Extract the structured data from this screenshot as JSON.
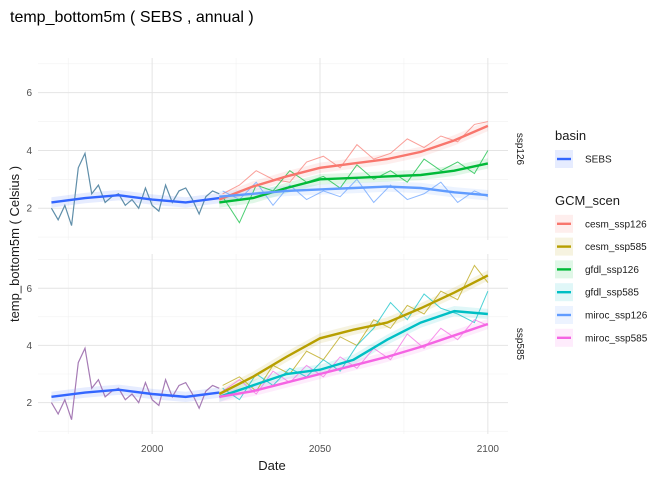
{
  "chart_data": {
    "type": "line",
    "title": "temp_bottom5m ( SEBS , annual )",
    "xlabel": "Date",
    "ylabel": "temp_bottom5m ( Celsius )",
    "xlim": [
      1966,
      2106
    ],
    "x_ticks": [
      2000,
      2050,
      2100
    ],
    "ylim": [
      0.9,
      7.2
    ],
    "y_ticks": [
      2,
      4,
      6
    ],
    "grid": true,
    "legend_position": "right",
    "legends": [
      {
        "title": "basin",
        "entries": [
          {
            "label": "SEBS",
            "color": "#3366FF"
          }
        ]
      },
      {
        "title": "GCM_scen",
        "entries": [
          {
            "label": "cesm_ssp126",
            "color": "#F8766D"
          },
          {
            "label": "cesm_ssp585",
            "color": "#B79F00"
          },
          {
            "label": "gfdl_ssp126",
            "color": "#00BA38"
          },
          {
            "label": "gfdl_ssp585",
            "color": "#00BFC4"
          },
          {
            "label": "miroc_ssp126",
            "color": "#619CFF"
          },
          {
            "label": "miroc_ssp585",
            "color": "#F564E3"
          }
        ]
      }
    ],
    "panels": [
      {
        "strip": "ssp126",
        "hindcast_color": "#5F8EA9",
        "hindcast": {
          "x": [
            1970,
            1972,
            1974,
            1976,
            1978,
            1980,
            1982,
            1984,
            1986,
            1988,
            1990,
            1992,
            1994,
            1996,
            1998,
            2000,
            2002,
            2004,
            2006,
            2008,
            2010,
            2012,
            2014,
            2016,
            2018,
            2020
          ],
          "y": [
            2.0,
            1.6,
            2.1,
            1.4,
            3.4,
            3.9,
            2.5,
            2.8,
            2.2,
            2.4,
            2.5,
            2.1,
            2.3,
            2.0,
            2.7,
            2.1,
            1.9,
            2.8,
            2.2,
            2.6,
            2.7,
            2.3,
            1.8,
            2.4,
            2.6,
            2.5
          ]
        },
        "smooth_hindcast": {
          "x": [
            1970,
            1980,
            1990,
            2000,
            2010,
            2020
          ],
          "y": [
            2.2,
            2.35,
            2.45,
            2.3,
            2.2,
            2.35
          ],
          "color": "#3366FF"
        },
        "series": [
          {
            "name": "cesm_ssp126",
            "color": "#F8766D",
            "x": [
              2021,
              2026,
              2031,
              2036,
              2041,
              2046,
              2051,
              2056,
              2061,
              2066,
              2071,
              2076,
              2081,
              2086,
              2091,
              2096,
              2100
            ],
            "y": [
              2.5,
              2.8,
              3.3,
              3.0,
              2.9,
              3.6,
              3.8,
              3.4,
              4.2,
              3.7,
              3.9,
              4.4,
              4.1,
              4.5,
              4.3,
              4.9,
              5.0
            ]
          },
          {
            "name": "gfdl_ssp126",
            "color": "#00BA38",
            "x": [
              2021,
              2026,
              2031,
              2036,
              2041,
              2046,
              2051,
              2056,
              2061,
              2066,
              2071,
              2076,
              2081,
              2086,
              2091,
              2096,
              2100
            ],
            "y": [
              2.4,
              1.5,
              2.8,
              2.6,
              3.3,
              2.9,
              3.1,
              2.7,
              3.5,
              3.0,
              3.3,
              2.9,
              3.7,
              3.3,
              3.6,
              3.2,
              4.0
            ]
          },
          {
            "name": "miroc_ssp126",
            "color": "#619CFF",
            "x": [
              2021,
              2026,
              2031,
              2036,
              2041,
              2046,
              2051,
              2056,
              2061,
              2066,
              2071,
              2076,
              2081,
              2086,
              2091,
              2096,
              2100
            ],
            "y": [
              2.6,
              2.3,
              2.9,
              2.1,
              2.8,
              2.3,
              2.6,
              2.4,
              3.0,
              2.2,
              2.8,
              2.3,
              2.5,
              2.9,
              2.2,
              2.6,
              2.4
            ]
          }
        ],
        "smooths": [
          {
            "name": "cesm_ssp126",
            "color": "#F8766D",
            "x": [
              2020,
              2030,
              2040,
              2050,
              2060,
              2070,
              2080,
              2090,
              2100
            ],
            "y": [
              2.3,
              2.75,
              3.1,
              3.4,
              3.55,
              3.7,
              3.95,
              4.35,
              4.85
            ]
          },
          {
            "name": "gfdl_ssp126",
            "color": "#00BA38",
            "x": [
              2020,
              2030,
              2040,
              2050,
              2060,
              2070,
              2080,
              2090,
              2100
            ],
            "y": [
              2.2,
              2.35,
              2.7,
              3.0,
              3.05,
              3.1,
              3.15,
              3.3,
              3.55
            ]
          },
          {
            "name": "miroc_ssp126",
            "color": "#619CFF",
            "x": [
              2020,
              2030,
              2040,
              2050,
              2060,
              2070,
              2080,
              2090,
              2100
            ],
            "y": [
              2.4,
              2.5,
              2.6,
              2.65,
              2.7,
              2.75,
              2.7,
              2.55,
              2.45
            ]
          }
        ]
      },
      {
        "strip": "ssp585",
        "hindcast_color": "#A67BB5",
        "hindcast": {
          "x": [
            1970,
            1972,
            1974,
            1976,
            1978,
            1980,
            1982,
            1984,
            1986,
            1988,
            1990,
            1992,
            1994,
            1996,
            1998,
            2000,
            2002,
            2004,
            2006,
            2008,
            2010,
            2012,
            2014,
            2016,
            2018,
            2020
          ],
          "y": [
            2.0,
            1.6,
            2.1,
            1.4,
            3.4,
            3.9,
            2.5,
            2.8,
            2.2,
            2.4,
            2.5,
            2.1,
            2.3,
            2.0,
            2.7,
            2.1,
            1.9,
            2.8,
            2.2,
            2.6,
            2.7,
            2.3,
            1.8,
            2.4,
            2.6,
            2.5
          ]
        },
        "smooth_hindcast": {
          "x": [
            1970,
            1980,
            1990,
            2000,
            2010,
            2020
          ],
          "y": [
            2.2,
            2.35,
            2.45,
            2.3,
            2.2,
            2.35
          ],
          "color": "#3366FF"
        },
        "series": [
          {
            "name": "cesm_ssp585",
            "color": "#B79F00",
            "x": [
              2021,
              2026,
              2031,
              2036,
              2041,
              2046,
              2051,
              2056,
              2061,
              2066,
              2071,
              2076,
              2081,
              2086,
              2091,
              2096,
              2100
            ],
            "y": [
              2.6,
              2.9,
              2.4,
              3.3,
              3.0,
              3.8,
              3.5,
              4.3,
              4.0,
              4.9,
              4.6,
              5.4,
              5.1,
              5.9,
              5.6,
              6.8,
              6.2
            ]
          },
          {
            "name": "gfdl_ssp585",
            "color": "#00BFC4",
            "x": [
              2021,
              2026,
              2031,
              2036,
              2041,
              2046,
              2051,
              2056,
              2061,
              2066,
              2071,
              2076,
              2081,
              2086,
              2091,
              2096,
              2100
            ],
            "y": [
              2.5,
              2.1,
              3.0,
              2.6,
              3.2,
              2.9,
              3.5,
              3.1,
              4.0,
              4.6,
              5.5,
              4.9,
              5.8,
              5.3,
              5.1,
              4.8,
              5.9
            ]
          },
          {
            "name": "miroc_ssp585",
            "color": "#F564E3",
            "x": [
              2021,
              2026,
              2031,
              2036,
              2041,
              2046,
              2051,
              2056,
              2061,
              2066,
              2071,
              2076,
              2081,
              2086,
              2091,
              2096,
              2100
            ],
            "y": [
              2.4,
              2.8,
              2.3,
              3.1,
              2.7,
              3.3,
              2.9,
              3.6,
              3.2,
              3.9,
              3.5,
              4.4,
              3.9,
              4.6,
              4.2,
              4.9,
              4.7
            ]
          }
        ],
        "smooths": [
          {
            "name": "cesm_ssp585",
            "color": "#B79F00",
            "x": [
              2020,
              2030,
              2040,
              2050,
              2060,
              2070,
              2080,
              2090,
              2100
            ],
            "y": [
              2.3,
              2.9,
              3.6,
              4.25,
              4.55,
              4.8,
              5.3,
              5.85,
              6.45
            ]
          },
          {
            "name": "gfdl_ssp585",
            "color": "#00BFC4",
            "x": [
              2020,
              2030,
              2040,
              2050,
              2060,
              2070,
              2080,
              2090,
              2100
            ],
            "y": [
              2.2,
              2.6,
              3.0,
              3.15,
              3.5,
              4.2,
              4.8,
              5.2,
              5.1
            ]
          },
          {
            "name": "miroc_ssp585",
            "color": "#F564E3",
            "x": [
              2020,
              2030,
              2040,
              2050,
              2060,
              2070,
              2080,
              2090,
              2100
            ],
            "y": [
              2.2,
              2.4,
              2.7,
              3.0,
              3.3,
              3.6,
              3.95,
              4.35,
              4.75
            ]
          }
        ]
      }
    ]
  }
}
